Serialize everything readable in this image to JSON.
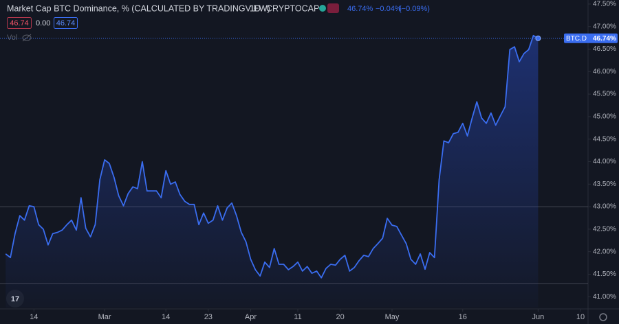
{
  "chart_data": {
    "type": "area",
    "title": "Market Cap BTC Dominance, % (CALCULATED BY TRADINGVIEW)",
    "interval": "1D",
    "exchange": "CRYPTOCAP",
    "header_values": [
      "46.74%",
      "−0.04%",
      "(−0.09%)"
    ],
    "status_boxes": [
      "46.74",
      "0.00",
      "46.74"
    ],
    "volume_label": "Vol",
    "last_value_label": "46.74%",
    "series": [
      {
        "name": "BTC.D",
        "color": "#3a6df0",
        "values": [
          41.95,
          41.87,
          42.4,
          42.8,
          42.7,
          43.02,
          43.0,
          42.6,
          42.5,
          42.15,
          42.4,
          42.43,
          42.48,
          42.6,
          42.7,
          42.48,
          43.2,
          42.52,
          42.33,
          42.6,
          43.6,
          44.04,
          43.96,
          43.65,
          43.24,
          43.02,
          43.29,
          43.44,
          43.4,
          44.0,
          43.35,
          43.35,
          43.35,
          43.2,
          43.8,
          43.5,
          43.55,
          43.27,
          43.12,
          43.05,
          43.05,
          42.6,
          42.86,
          42.63,
          42.7,
          43.02,
          42.7,
          42.97,
          43.08,
          42.8,
          42.43,
          42.22,
          41.83,
          41.6,
          41.46,
          41.77,
          41.65,
          42.07,
          41.72,
          41.72,
          41.6,
          41.67,
          41.77,
          41.57,
          41.67,
          41.52,
          41.57,
          41.42,
          41.63,
          41.72,
          41.7,
          41.83,
          41.92,
          41.57,
          41.65,
          41.8,
          41.92,
          41.89,
          42.07,
          42.18,
          42.3,
          42.74,
          42.59,
          42.56,
          42.37,
          42.18,
          41.83,
          41.72,
          41.95,
          41.61,
          41.98,
          41.87,
          43.6,
          44.46,
          44.42,
          44.62,
          44.65,
          44.85,
          44.57,
          44.97,
          45.33,
          44.97,
          44.85,
          45.08,
          44.81,
          45.02,
          45.22,
          46.49,
          46.55,
          46.22,
          46.4,
          46.49,
          46.8,
          46.74
        ]
      }
    ],
    "xlim": [
      -1.2,
      123.6
    ],
    "xticks": [
      {
        "value": 6,
        "label": "14"
      },
      {
        "value": 21,
        "label": "Mar"
      },
      {
        "value": 34,
        "label": "14"
      },
      {
        "value": 43,
        "label": "23"
      },
      {
        "value": 52,
        "label": "Apr"
      },
      {
        "value": 62,
        "label": "11"
      },
      {
        "value": 71,
        "label": "20"
      },
      {
        "value": 82,
        "label": "May"
      },
      {
        "value": 97,
        "label": "16"
      },
      {
        "value": 113,
        "label": "Jun"
      },
      {
        "value": 122,
        "label": "10"
      }
    ],
    "ylim": [
      40.76,
      47.59
    ],
    "yticks": [
      {
        "value": 41,
        "label": "41.00%"
      },
      {
        "value": 41.5,
        "label": "41.50%"
      },
      {
        "value": 42,
        "label": "42.00%"
      },
      {
        "value": 42.5,
        "label": "42.50%"
      },
      {
        "value": 43,
        "label": "43.00%"
      },
      {
        "value": 43.5,
        "label": "43.50%"
      },
      {
        "value": 44,
        "label": "44.00%"
      },
      {
        "value": 44.5,
        "label": "44.50%"
      },
      {
        "value": 45,
        "label": "45.00%"
      },
      {
        "value": 45.5,
        "label": "45.50%"
      },
      {
        "value": 46,
        "label": "46.00%"
      },
      {
        "value": 46.5,
        "label": "46.50%"
      },
      {
        "value": 47,
        "label": "47.00%"
      },
      {
        "value": 47.5,
        "label": "47.50%"
      }
    ],
    "horizontal_lines": [
      43.0,
      41.29
    ]
  }
}
